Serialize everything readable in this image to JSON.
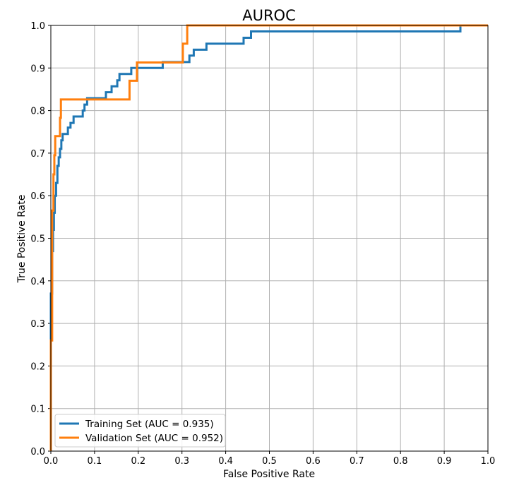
{
  "chart_data": {
    "type": "line",
    "title": "AUROC",
    "xlabel": "False Positive Rate",
    "ylabel": "True Positive Rate",
    "xlim": [
      0,
      1
    ],
    "ylim": [
      0,
      1
    ],
    "xticks": [
      "0.0",
      "0.1",
      "0.2",
      "0.3",
      "0.4",
      "0.5",
      "0.6",
      "0.7",
      "0.8",
      "0.9",
      "1.0"
    ],
    "yticks": [
      "0.0",
      "0.1",
      "0.2",
      "0.3",
      "0.4",
      "0.5",
      "0.6",
      "0.7",
      "0.8",
      "0.9",
      "1.0"
    ],
    "grid": true,
    "legend_position": "lower-left",
    "series": [
      {
        "name": "Training Set (AUC = 0.935)",
        "color": "#1f77b4",
        "x": [
          0.0,
          0.0,
          0.003,
          0.003,
          0.005,
          0.005,
          0.007,
          0.007,
          0.009,
          0.009,
          0.012,
          0.012,
          0.015,
          0.015,
          0.018,
          0.018,
          0.021,
          0.021,
          0.024,
          0.024,
          0.027,
          0.027,
          0.03,
          0.03,
          0.039,
          0.039,
          0.045,
          0.045,
          0.052,
          0.052,
          0.073,
          0.073,
          0.077,
          0.077,
          0.083,
          0.083,
          0.126,
          0.126,
          0.139,
          0.139,
          0.152,
          0.152,
          0.157,
          0.157,
          0.184,
          0.184,
          0.256,
          0.256,
          0.317,
          0.317,
          0.327,
          0.327,
          0.356,
          0.356,
          0.441,
          0.441,
          0.458,
          0.458,
          0.937,
          0.937,
          1.0
        ],
        "y": [
          0.0,
          0.37,
          0.37,
          0.47,
          0.47,
          0.52,
          0.52,
          0.56,
          0.56,
          0.6,
          0.6,
          0.63,
          0.63,
          0.67,
          0.67,
          0.69,
          0.69,
          0.71,
          0.71,
          0.73,
          0.73,
          0.745,
          0.745,
          0.745,
          0.745,
          0.76,
          0.76,
          0.771,
          0.771,
          0.786,
          0.786,
          0.8,
          0.8,
          0.814,
          0.814,
          0.829,
          0.829,
          0.843,
          0.843,
          0.857,
          0.857,
          0.871,
          0.871,
          0.886,
          0.886,
          0.9,
          0.9,
          0.914,
          0.914,
          0.929,
          0.929,
          0.943,
          0.943,
          0.957,
          0.957,
          0.971,
          0.971,
          0.986,
          0.986,
          1.0,
          1.0
        ]
      },
      {
        "name": "Validation Set (AUC = 0.952)",
        "color": "#ff7f0e",
        "x": [
          0.0,
          0.0,
          0.003,
          0.003,
          0.006,
          0.006,
          0.008,
          0.008,
          0.01,
          0.01,
          0.013,
          0.013,
          0.021,
          0.021,
          0.023,
          0.023,
          0.18,
          0.18,
          0.197,
          0.197,
          0.302,
          0.302,
          0.312,
          0.312,
          1.0
        ],
        "y": [
          0.0,
          0.26,
          0.26,
          0.565,
          0.565,
          0.65,
          0.65,
          0.695,
          0.695,
          0.74,
          0.74,
          0.74,
          0.74,
          0.783,
          0.783,
          0.826,
          0.826,
          0.87,
          0.87,
          0.913,
          0.913,
          0.957,
          0.957,
          1.0,
          1.0
        ]
      }
    ]
  }
}
